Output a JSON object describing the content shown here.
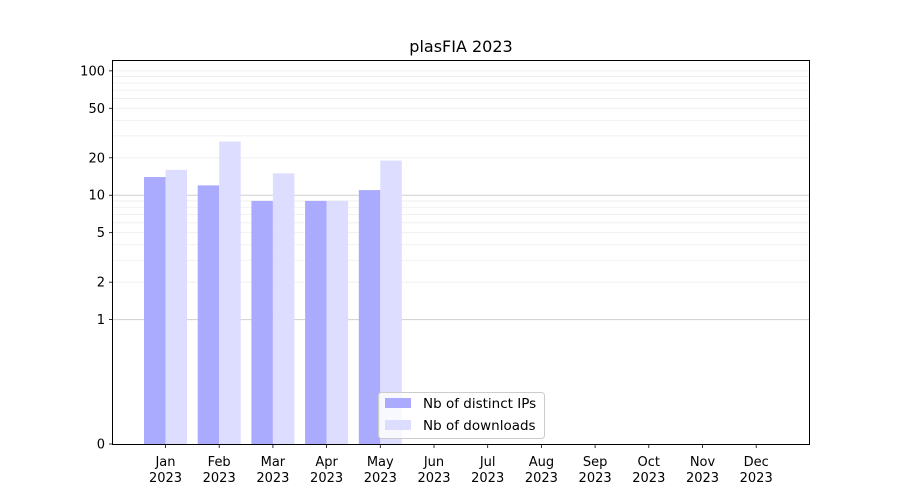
{
  "chart_data": {
    "type": "bar",
    "title": "plasFIA 2023",
    "xlabel": "",
    "ylabel": "",
    "y_scale": "symlog",
    "ylim": [
      0,
      120
    ],
    "grid": true,
    "legend_placement": "bottom-center",
    "categories": [
      {
        "month": "Jan",
        "year": "2023"
      },
      {
        "month": "Feb",
        "year": "2023"
      },
      {
        "month": "Mar",
        "year": "2023"
      },
      {
        "month": "Apr",
        "year": "2023"
      },
      {
        "month": "May",
        "year": "2023"
      },
      {
        "month": "Jun",
        "year": "2023"
      },
      {
        "month": "Jul",
        "year": "2023"
      },
      {
        "month": "Aug",
        "year": "2023"
      },
      {
        "month": "Sep",
        "year": "2023"
      },
      {
        "month": "Oct",
        "year": "2023"
      },
      {
        "month": "Nov",
        "year": "2023"
      },
      {
        "month": "Dec",
        "year": "2023"
      }
    ],
    "series": [
      {
        "name": "Nb of distinct IPs",
        "color": "#aaaaff",
        "values": [
          14,
          12,
          9,
          9,
          11,
          0,
          0,
          0,
          0,
          0,
          0,
          0
        ]
      },
      {
        "name": "Nb of downloads",
        "color": "#ddddff",
        "values": [
          16,
          27,
          15,
          9,
          19,
          0,
          0,
          0,
          0,
          0,
          0,
          0
        ]
      }
    ],
    "y_ticks": [
      {
        "value": 0,
        "label": "0"
      },
      {
        "value": 1,
        "label": "1"
      },
      {
        "value": 2,
        "label": "2"
      },
      {
        "value": 5,
        "label": "5"
      },
      {
        "value": 10,
        "label": "10"
      },
      {
        "value": 20,
        "label": "20"
      },
      {
        "value": 50,
        "label": "50"
      },
      {
        "value": 100,
        "label": "100"
      }
    ],
    "major_gridlines": [
      1,
      10
    ],
    "minor_gridlines": [
      2,
      3,
      4,
      5,
      6,
      7,
      8,
      9,
      20,
      30,
      40,
      50,
      60,
      70,
      80,
      90,
      100
    ]
  }
}
